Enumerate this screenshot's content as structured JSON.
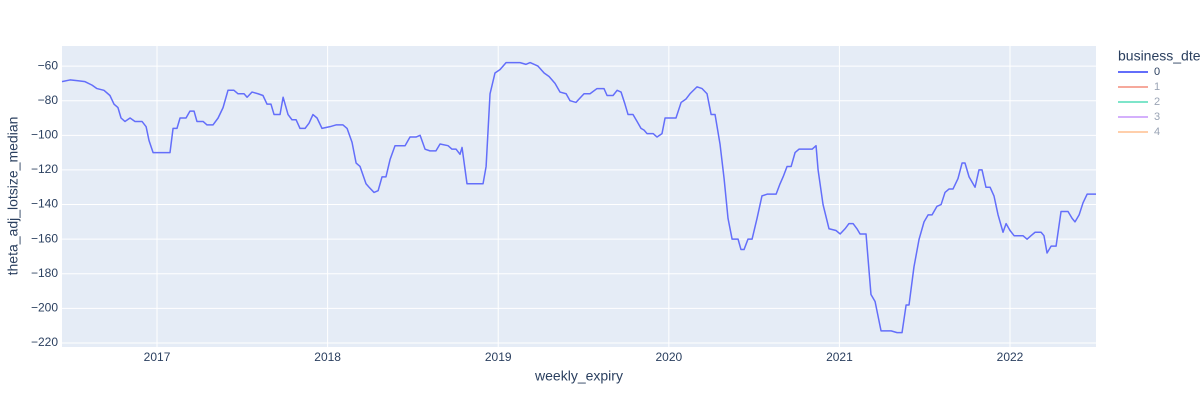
{
  "chart_data": {
    "type": "line",
    "x_label": "weekly_expiry",
    "y_label": "theta_adj_lotsize_median",
    "legend_title": "business_dte",
    "legend_position": "right",
    "x": [
      2016.443,
      2016.49,
      2016.537,
      2016.578,
      2016.619,
      2016.648,
      2016.689,
      2016.724,
      2016.748,
      2016.771,
      2016.789,
      2016.812,
      2016.842,
      2016.871,
      2016.912,
      2016.936,
      2016.953,
      2016.977,
      2017.018,
      2017.076,
      2017.094,
      2017.117,
      2017.135,
      2017.17,
      2017.193,
      2017.217,
      2017.234,
      2017.27,
      2017.293,
      2017.328,
      2017.358,
      2017.387,
      2017.416,
      2017.451,
      2017.475,
      2017.51,
      2017.528,
      2017.557,
      2017.592,
      2017.621,
      2017.645,
      2017.668,
      2017.686,
      2017.721,
      2017.739,
      2017.768,
      2017.791,
      2017.815,
      2017.838,
      2017.868,
      2017.891,
      2017.914,
      2017.938,
      2017.967,
      2018.014,
      2018.049,
      2018.09,
      2018.114,
      2018.143,
      2018.167,
      2018.19,
      2018.225,
      2018.243,
      2018.272,
      2018.296,
      2018.319,
      2018.342,
      2018.366,
      2018.395,
      2018.419,
      2018.454,
      2018.483,
      2018.518,
      2018.542,
      2018.571,
      2018.6,
      2018.635,
      2018.659,
      2018.706,
      2018.729,
      2018.753,
      2018.776,
      2018.788,
      2018.817,
      2018.911,
      2018.929,
      2018.952,
      2018.981,
      2019.011,
      2019.046,
      2019.081,
      2019.128,
      2019.163,
      2019.187,
      2019.233,
      2019.269,
      2019.298,
      2019.333,
      2019.362,
      2019.398,
      2019.421,
      2019.456,
      2019.474,
      2019.503,
      2019.538,
      2019.579,
      2019.62,
      2019.638,
      2019.673,
      2019.697,
      2019.72,
      2019.743,
      2019.761,
      2019.79,
      2019.814,
      2019.837,
      2019.855,
      2019.872,
      2019.908,
      2019.931,
      2019.96,
      2019.978,
      2020.042,
      2020.072,
      2020.101,
      2020.124,
      2020.165,
      2020.195,
      2020.224,
      2020.248,
      2020.271,
      2020.3,
      2020.324,
      2020.347,
      2020.371,
      2020.406,
      2020.423,
      2020.441,
      2020.464,
      2020.488,
      2020.517,
      2020.546,
      2020.576,
      2020.605,
      2020.629,
      2020.652,
      2020.67,
      2020.693,
      2020.717,
      2020.74,
      2020.763,
      2020.804,
      2020.84,
      2020.863,
      2020.875,
      2020.904,
      2020.939,
      2020.98,
      2021.004,
      2021.033,
      2021.056,
      2021.08,
      2021.103,
      2021.121,
      2021.156,
      2021.185,
      2021.209,
      2021.244,
      2021.303,
      2021.338,
      2021.367,
      2021.391,
      2021.408,
      2021.437,
      2021.467,
      2021.496,
      2021.52,
      2021.543,
      2021.572,
      2021.596,
      2021.619,
      2021.643,
      2021.666,
      2021.695,
      2021.719,
      2021.736,
      2021.76,
      2021.795,
      2021.818,
      2021.836,
      2021.859,
      2021.883,
      2021.906,
      2021.93,
      2021.959,
      2021.977,
      2022.0,
      2022.024,
      2022.076,
      2022.1,
      2022.123,
      2022.147,
      2022.182,
      2022.199,
      2022.217,
      2022.241,
      2022.27,
      2022.299,
      2022.34,
      2022.364,
      2022.381,
      2022.405,
      2022.428,
      2022.452,
      2022.504
    ],
    "series": [
      {
        "name": "0",
        "color": "#636efa",
        "visible": true,
        "values": [
          -69,
          -68,
          -68.5,
          -69,
          -71,
          -73,
          -74,
          -77,
          -82,
          -84,
          -90,
          -92,
          -90,
          -92,
          -92,
          -95,
          -103,
          -110,
          -110,
          -110,
          -96,
          -96,
          -90,
          -90,
          -86,
          -86,
          -92,
          -92,
          -94,
          -94,
          -90,
          -84,
          -74,
          -74,
          -76,
          -76,
          -78,
          -75,
          -76,
          -77,
          -82,
          -82,
          -88,
          -88,
          -78,
          -88,
          -91,
          -91,
          -96,
          -96,
          -93,
          -88,
          -90,
          -96,
          -95,
          -94,
          -94,
          -96,
          -104,
          -116,
          -118,
          -128,
          -130,
          -133,
          -132,
          -124,
          -124,
          -114,
          -106,
          -106,
          -106,
          -101,
          -101,
          -100,
          -108,
          -109,
          -109,
          -105,
          -106,
          -108,
          -108,
          -111,
          -107,
          -128,
          -128,
          -118,
          -76,
          -64,
          -62,
          -58,
          -58,
          -58,
          -59,
          -58,
          -60,
          -64,
          -66,
          -70,
          -75,
          -76,
          -80,
          -81,
          -79,
          -76,
          -76,
          -73,
          -73,
          -77,
          -77,
          -74,
          -75,
          -82,
          -88,
          -88,
          -92,
          -96,
          -97,
          -99,
          -99,
          -101,
          -99,
          -90,
          -90,
          -81,
          -79,
          -76,
          -72,
          -73,
          -76,
          -88,
          -88,
          -105,
          -125,
          -148,
          -160,
          -160,
          -166,
          -166,
          -160,
          -160,
          -148,
          -135,
          -134,
          -134,
          -134,
          -128,
          -124,
          -118,
          -118,
          -110,
          -108,
          -108,
          -108,
          -106,
          -120,
          -140,
          -154,
          -155,
          -157,
          -154,
          -151,
          -151,
          -154,
          -157,
          -157,
          -192,
          -196,
          -213,
          -213,
          -214,
          -214,
          -198,
          -198,
          -176,
          -160,
          -150,
          -146,
          -146,
          -141,
          -140,
          -133,
          -131,
          -131,
          -125,
          -116,
          -116,
          -124,
          -130,
          -120,
          -120,
          -130,
          -130,
          -135,
          -146,
          -156,
          -151,
          -155,
          -158,
          -158,
          -160,
          -158,
          -156,
          -156,
          -158,
          -168,
          -164,
          -164,
          -144,
          -144,
          -148,
          -150,
          -146,
          -139,
          -134,
          -134
        ]
      },
      {
        "name": "1",
        "color": "#EF553B",
        "visible": "legendonly"
      },
      {
        "name": "2",
        "color": "#00cc96",
        "visible": "legendonly"
      },
      {
        "name": "3",
        "color": "#ab63fa",
        "visible": "legendonly"
      },
      {
        "name": "4",
        "color": "#FFA15A",
        "visible": "legendonly"
      }
    ],
    "xlim": [
      2016.443,
      2022.504
    ],
    "xticks": [
      2017,
      2018,
      2019,
      2020,
      2021,
      2022
    ],
    "ylim": [
      -222.3,
      -48.4
    ],
    "yticks": [
      {
        "value": -60,
        "label": "−60"
      },
      {
        "value": -80,
        "label": "−80"
      },
      {
        "value": -100,
        "label": "−100"
      },
      {
        "value": -120,
        "label": "−120"
      },
      {
        "value": -140,
        "label": "−140"
      },
      {
        "value": -160,
        "label": "−160"
      },
      {
        "value": -180,
        "label": "−180"
      },
      {
        "value": -200,
        "label": "−200"
      },
      {
        "value": -220,
        "label": "−220"
      }
    ],
    "grid": true,
    "plot_background": "#e5ecf6"
  }
}
